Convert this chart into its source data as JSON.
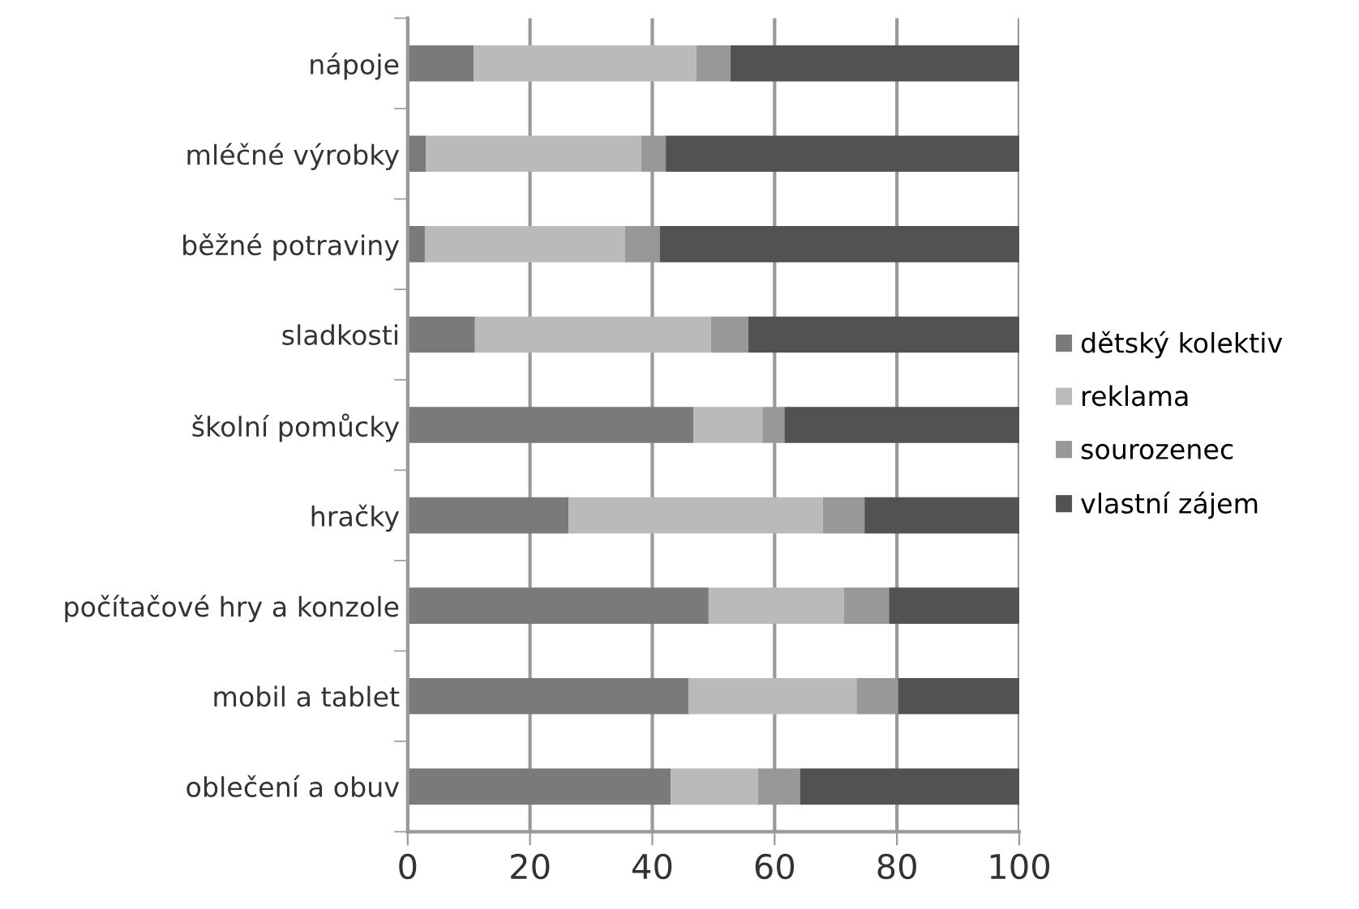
{
  "chart_data": {
    "type": "bar",
    "orientation": "horizontal",
    "stacked": true,
    "categories": [
      "nápoje",
      "mléčné výrobky",
      "běžné potraviny",
      "sladkosti",
      "školní pomůcky",
      "hračky",
      "počítačové hry a konzole",
      "mobil a tablet",
      "oblečení a obuv"
    ],
    "series": [
      {
        "name": "dětský kolektiv",
        "color": "#7a7a7a",
        "values": [
          10.8,
          3.0,
          2.8,
          11.0,
          46.7,
          26.3,
          49.2,
          45.9,
          43.0
        ]
      },
      {
        "name": "reklama",
        "color": "#bababa",
        "values": [
          36.4,
          35.2,
          32.7,
          38.6,
          11.3,
          41.6,
          22.1,
          27.5,
          14.3
        ]
      },
      {
        "name": "sourozenec",
        "color": "#989898",
        "values": [
          5.6,
          4.0,
          5.7,
          6.1,
          3.6,
          6.8,
          7.4,
          6.8,
          6.9
        ]
      },
      {
        "name": "vlastní zájem",
        "color": "#525252",
        "values": [
          47.2,
          57.8,
          58.8,
          44.3,
          38.4,
          25.3,
          21.3,
          19.8,
          35.8
        ]
      }
    ],
    "xlim": [
      0,
      100
    ],
    "xticks": [
      0,
      20,
      40,
      60,
      80,
      100
    ],
    "grid": "x",
    "legend": "right"
  }
}
